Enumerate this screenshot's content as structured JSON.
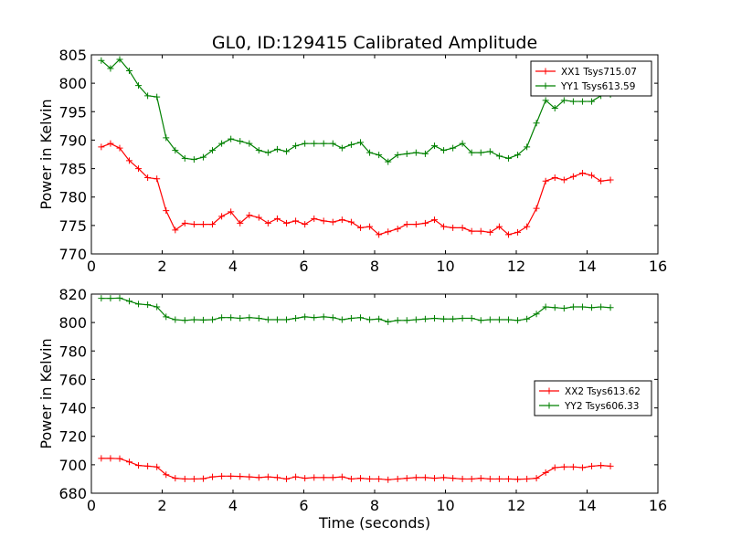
{
  "title": "GL0, ID:129415 Calibrated Amplitude",
  "colors": {
    "red": "#ff0000",
    "green": "#008000",
    "axis": "#000000"
  },
  "chart_data": [
    {
      "type": "line",
      "xlabel": "",
      "ylabel": "Power in Kelvin",
      "xlim": [
        0,
        16
      ],
      "ylim": [
        770,
        805
      ],
      "xticks": [
        0,
        2,
        4,
        6,
        8,
        10,
        12,
        14,
        16
      ],
      "yticks": [
        770,
        775,
        780,
        785,
        790,
        795,
        800,
        805
      ],
      "grid": false,
      "legend": "top-right",
      "x": [
        0.28,
        0.54,
        0.8,
        1.07,
        1.33,
        1.59,
        1.85,
        2.11,
        2.37,
        2.64,
        2.9,
        3.16,
        3.42,
        3.68,
        3.94,
        4.2,
        4.46,
        4.73,
        4.99,
        5.25,
        5.51,
        5.77,
        6.03,
        6.29,
        6.56,
        6.82,
        7.08,
        7.34,
        7.6,
        7.86,
        8.12,
        8.38,
        8.65,
        8.91,
        9.17,
        9.43,
        9.69,
        9.95,
        10.21,
        10.48,
        10.74,
        11.0,
        11.26,
        11.52,
        11.78,
        12.04,
        12.3,
        12.57,
        12.83,
        13.09,
        13.35,
        13.61,
        13.87,
        14.13,
        14.39,
        14.66
      ],
      "series": [
        {
          "name": "XX1 Tsys715.07",
          "color": "#ff0000",
          "values": [
            788.8,
            789.4,
            788.6,
            786.4,
            785.0,
            783.4,
            783.2,
            777.6,
            774.2,
            775.4,
            775.2,
            775.2,
            775.2,
            776.6,
            777.4,
            775.4,
            776.8,
            776.4,
            775.4,
            776.2,
            775.4,
            775.8,
            775.2,
            776.2,
            775.8,
            775.6,
            776.0,
            775.6,
            774.6,
            774.8,
            773.4,
            773.9,
            774.4,
            775.2,
            775.2,
            775.4,
            776.0,
            774.8,
            774.6,
            774.6,
            774.0,
            774.0,
            773.8,
            774.8,
            773.4,
            773.8,
            774.8,
            778.0,
            782.8,
            783.4,
            783.0,
            783.6,
            784.2,
            783.8,
            782.8,
            783.0
          ]
        },
        {
          "name": "YY1 Tsys613.59",
          "color": "#008000",
          "values": [
            804.0,
            802.6,
            804.2,
            802.2,
            799.6,
            797.8,
            797.6,
            790.4,
            788.2,
            786.8,
            786.6,
            787.0,
            788.2,
            789.4,
            790.2,
            789.8,
            789.4,
            788.2,
            787.8,
            788.4,
            788.0,
            789.0,
            789.4,
            789.4,
            789.4,
            789.4,
            788.6,
            789.2,
            789.6,
            787.8,
            787.4,
            786.2,
            787.4,
            787.6,
            787.8,
            787.6,
            789.0,
            788.2,
            788.6,
            789.4,
            787.8,
            787.8,
            788.0,
            787.2,
            786.8,
            787.4,
            788.8,
            793.0,
            797.0,
            795.6,
            797.0,
            796.8,
            796.8,
            796.8,
            797.8,
            798.0
          ]
        }
      ]
    },
    {
      "type": "line",
      "xlabel": "Time (seconds)",
      "ylabel": "Power in Kelvin",
      "xlim": [
        0,
        16
      ],
      "ylim": [
        680,
        820
      ],
      "xticks": [
        0,
        2,
        4,
        6,
        8,
        10,
        12,
        14,
        16
      ],
      "yticks": [
        680,
        700,
        720,
        740,
        760,
        780,
        800,
        820
      ],
      "grid": false,
      "legend": "center-right",
      "x": [
        0.28,
        0.54,
        0.8,
        1.07,
        1.33,
        1.59,
        1.85,
        2.11,
        2.37,
        2.64,
        2.9,
        3.16,
        3.42,
        3.68,
        3.94,
        4.2,
        4.46,
        4.73,
        4.99,
        5.25,
        5.51,
        5.77,
        6.03,
        6.29,
        6.56,
        6.82,
        7.08,
        7.34,
        7.6,
        7.86,
        8.12,
        8.38,
        8.65,
        8.91,
        9.17,
        9.43,
        9.69,
        9.95,
        10.21,
        10.48,
        10.74,
        11.0,
        11.26,
        11.52,
        11.78,
        12.04,
        12.3,
        12.57,
        12.83,
        13.09,
        13.35,
        13.61,
        13.87,
        14.13,
        14.39,
        14.66
      ],
      "series": [
        {
          "name": "XX2 Tsys613.62",
          "color": "#ff0000",
          "values": [
            704.5,
            704.5,
            704.3,
            702.0,
            699.5,
            699.0,
            698.5,
            693.0,
            690.5,
            690.0,
            690.0,
            690.2,
            691.5,
            692.0,
            692.0,
            691.8,
            691.5,
            691.0,
            691.5,
            691.0,
            690.0,
            691.5,
            690.5,
            691.0,
            691.0,
            691.0,
            691.5,
            690.0,
            690.5,
            690.0,
            690.0,
            689.5,
            690.0,
            690.5,
            691.0,
            691.0,
            690.5,
            691.0,
            690.5,
            690.0,
            690.0,
            690.5,
            690.0,
            690.0,
            690.0,
            689.8,
            690.0,
            690.5,
            694.5,
            698.0,
            698.5,
            698.5,
            698.0,
            699.0,
            699.5,
            699.0
          ]
        },
        {
          "name": "YY2 Tsys606.33",
          "color": "#008000",
          "values": [
            817.0,
            817.0,
            817.2,
            815.0,
            813.0,
            812.5,
            811.0,
            804.0,
            802.0,
            801.5,
            802.0,
            801.8,
            802.0,
            803.5,
            803.5,
            803.0,
            803.5,
            803.0,
            802.0,
            802.0,
            802.0,
            803.0,
            804.0,
            803.5,
            804.0,
            803.5,
            802.0,
            803.0,
            803.5,
            802.0,
            802.5,
            800.5,
            801.5,
            801.5,
            802.0,
            802.5,
            803.0,
            802.5,
            802.5,
            803.0,
            803.0,
            801.5,
            802.0,
            802.0,
            802.0,
            801.5,
            802.5,
            806.0,
            811.0,
            810.5,
            810.0,
            811.0,
            811.0,
            810.5,
            811.0,
            810.5
          ]
        }
      ]
    }
  ]
}
